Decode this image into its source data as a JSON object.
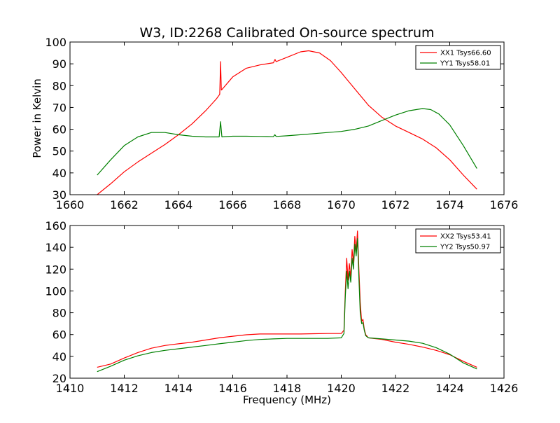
{
  "figure": {
    "title": "W3, ID:2268 Calibrated On-source spectrum",
    "xlabel": "Frequency (MHz)",
    "ylabel": "Power in Kelvin"
  },
  "chart_data": [
    {
      "type": "line",
      "title": "W3, ID:2268 Calibrated On-source spectrum",
      "xlabel": "",
      "ylabel": "Power in Kelvin",
      "xlim": [
        1660,
        1676
      ],
      "ylim": [
        30,
        100
      ],
      "xticks": [
        "1660",
        "1662",
        "1664",
        "1666",
        "1668",
        "1670",
        "1672",
        "1674",
        "1676"
      ],
      "yticks": [
        "30",
        "40",
        "50",
        "60",
        "70",
        "80",
        "90",
        "100"
      ],
      "legend_position": "top-right",
      "series": [
        {
          "name": "XX1 Tsys66.60",
          "color": "#ff0000",
          "x": [
            1661.0,
            1661.5,
            1662.0,
            1662.5,
            1663.0,
            1663.5,
            1664.0,
            1664.5,
            1665.0,
            1665.4,
            1665.52,
            1665.55,
            1665.58,
            1665.62,
            1666.0,
            1666.5,
            1667.0,
            1667.5,
            1667.56,
            1667.6,
            1668.0,
            1668.5,
            1668.8,
            1669.2,
            1669.6,
            1670.0,
            1670.5,
            1671.0,
            1671.5,
            1672.0,
            1672.5,
            1673.0,
            1673.5,
            1674.0,
            1674.5,
            1675.0
          ],
          "y": [
            30,
            35,
            40.5,
            45,
            49,
            53,
            57.5,
            62.5,
            68.5,
            74,
            76,
            91,
            78,
            78.5,
            84,
            88,
            89.5,
            90.5,
            92,
            91,
            93,
            95.5,
            96,
            95,
            91.5,
            86,
            78.5,
            71,
            65.5,
            61.5,
            58.5,
            55.5,
            51.5,
            46,
            39,
            32.5
          ]
        },
        {
          "name": "YY1 Tsys58.01",
          "color": "#008000",
          "x": [
            1661.0,
            1661.5,
            1662.0,
            1662.5,
            1663.0,
            1663.5,
            1664.0,
            1664.5,
            1665.0,
            1665.5,
            1665.55,
            1665.6,
            1666.0,
            1666.5,
            1667.0,
            1667.5,
            1667.55,
            1667.6,
            1668.0,
            1668.5,
            1669.0,
            1669.5,
            1670.0,
            1670.5,
            1671.0,
            1671.5,
            1672.0,
            1672.5,
            1673.0,
            1673.3,
            1673.6,
            1674.0,
            1674.5,
            1675.0
          ],
          "y": [
            39,
            46,
            52.5,
            56.5,
            58.5,
            58.5,
            57.5,
            56.8,
            56.5,
            56.5,
            63.5,
            56.5,
            56.8,
            56.8,
            56.7,
            56.6,
            57.5,
            56.7,
            57,
            57.5,
            58,
            58.5,
            59,
            60,
            61.5,
            64,
            66.5,
            68.5,
            69.5,
            69,
            67,
            62,
            52.5,
            42
          ]
        }
      ]
    },
    {
      "type": "line",
      "title": "",
      "xlabel": "Frequency (MHz)",
      "ylabel": "",
      "xlim": [
        1410,
        1426
      ],
      "ylim": [
        20,
        160
      ],
      "xticks": [
        "1410",
        "1412",
        "1414",
        "1416",
        "1418",
        "1420",
        "1422",
        "1424",
        "1426"
      ],
      "yticks": [
        "20",
        "40",
        "60",
        "80",
        "100",
        "120",
        "140",
        "160"
      ],
      "legend_position": "top-right",
      "series": [
        {
          "name": "XX2 Tsys53.41",
          "color": "#ff0000",
          "x": [
            1411.0,
            1411.5,
            1412.0,
            1412.5,
            1413.0,
            1413.5,
            1414.0,
            1414.5,
            1415.0,
            1415.5,
            1416.0,
            1416.5,
            1417.0,
            1417.5,
            1418.0,
            1418.5,
            1419.0,
            1419.5,
            1420.0,
            1420.1,
            1420.15,
            1420.2,
            1420.25,
            1420.3,
            1420.35,
            1420.4,
            1420.45,
            1420.5,
            1420.55,
            1420.6,
            1420.65,
            1420.7,
            1420.75,
            1420.8,
            1420.85,
            1420.9,
            1421.0,
            1421.5,
            1422.0,
            1422.5,
            1423.0,
            1423.5,
            1424.0,
            1424.5,
            1425.0
          ],
          "y": [
            30,
            33,
            38.5,
            43.5,
            47.5,
            50,
            51.5,
            53,
            55,
            57,
            58.5,
            59.8,
            60.5,
            60.5,
            60.5,
            60.5,
            60.8,
            61,
            61,
            64,
            100,
            130,
            110,
            125,
            112,
            138,
            126,
            150,
            136,
            155,
            120,
            90,
            72,
            74,
            65,
            60,
            57,
            55.5,
            53,
            51,
            48.5,
            45.5,
            41.5,
            35.5,
            30
          ]
        },
        {
          "name": "YY2 Tsys50.97",
          "color": "#008000",
          "x": [
            1411.0,
            1411.5,
            1412.0,
            1412.5,
            1413.0,
            1413.5,
            1414.0,
            1414.5,
            1415.0,
            1415.5,
            1416.0,
            1416.5,
            1417.0,
            1417.5,
            1418.0,
            1418.5,
            1419.0,
            1419.5,
            1420.0,
            1420.1,
            1420.15,
            1420.2,
            1420.25,
            1420.3,
            1420.35,
            1420.4,
            1420.45,
            1420.5,
            1420.55,
            1420.6,
            1420.65,
            1420.7,
            1420.75,
            1420.8,
            1420.85,
            1420.9,
            1421.0,
            1421.5,
            1422.0,
            1422.5,
            1423.0,
            1423.5,
            1424.0,
            1424.5,
            1425.0
          ],
          "y": [
            26,
            31,
            36.5,
            40.5,
            43.5,
            45.5,
            47,
            48.5,
            50,
            51.5,
            53,
            54.5,
            55.5,
            56,
            56.5,
            56.5,
            56.5,
            56.5,
            57,
            61,
            95,
            118,
            102,
            118,
            108,
            130,
            120,
            143,
            132,
            148,
            112,
            80,
            70,
            71,
            64,
            59,
            57,
            56,
            55,
            54,
            52,
            48,
            42,
            34,
            28.5
          ]
        }
      ]
    }
  ]
}
